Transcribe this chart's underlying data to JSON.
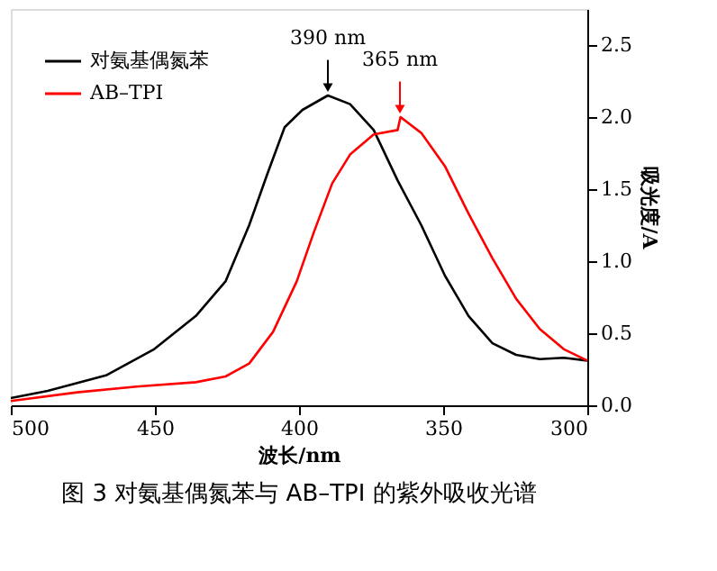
{
  "chart_data": {
    "type": "line",
    "title": "图 3  对氨基偶氮苯与 AB–TPI 的紫外吸收光谱",
    "xlabel": "波长/nm",
    "ylabel": "吸光度/A",
    "xlim": [
      500,
      300
    ],
    "xticks": [
      500,
      450,
      400,
      350,
      300
    ],
    "ylim": [
      0,
      2.75
    ],
    "yticks": [
      {
        "value": 0,
        "label": "0.0"
      },
      0.5,
      {
        "value": 1,
        "label": "1.0"
      },
      1.5,
      {
        "value": 2,
        "label": "2.0"
      },
      2.5
    ],
    "grid": false,
    "legend": "top left",
    "marker": "none",
    "line_style": "solid",
    "annotations": [
      {
        "text": "390 nm",
        "x": 390,
        "y": 2.15
      },
      {
        "text": "365 nm",
        "x": 365,
        "y": 2.0
      }
    ],
    "series": [
      {
        "name": "对氨基偶氮苯",
        "color": "#000000",
        "x": [
          500,
          487.2,
          466.7,
          450.2,
          435.8,
          425.5,
          417.3,
          411.1,
          405,
          398.8,
          390,
          382.3,
          374.1,
          365.8,
          357.6,
          349.4,
          341.2,
          332.9,
          324.7,
          316.5,
          308.2,
          300
        ],
        "values": [
          0.05,
          0.1,
          0.21,
          0.39,
          0.62,
          0.86,
          1.25,
          1.6,
          1.93,
          2.05,
          2.15,
          2.09,
          1.91,
          1.56,
          1.25,
          0.9,
          0.62,
          0.43,
          0.35,
          0.32,
          0.33,
          0.31
        ]
      },
      {
        "name": "AB–TPI",
        "color": "#ff0000",
        "x": [
          500,
          477,
          456.4,
          435.8,
          425.5,
          417.3,
          409,
          400.8,
          394.7,
          388.5,
          382.3,
          374.1,
          365.8,
          364.8,
          357.6,
          349.4,
          341.2,
          332.9,
          324.7,
          316.5,
          308.2,
          300
        ],
        "values": [
          0.03,
          0.09,
          0.13,
          0.16,
          0.2,
          0.29,
          0.51,
          0.86,
          1.21,
          1.54,
          1.74,
          1.88,
          1.91,
          2.0,
          1.89,
          1.66,
          1.33,
          1.02,
          0.74,
          0.53,
          0.39,
          0.31
        ]
      }
    ]
  }
}
